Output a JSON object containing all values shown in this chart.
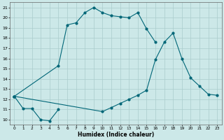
{
  "xlabel": "Humidex (Indice chaleur)",
  "bg_color": "#cce8e8",
  "line_color": "#006677",
  "grid_color": "#aacccc",
  "xlim": [
    -0.5,
    23.5
  ],
  "ylim": [
    9.5,
    21.5
  ],
  "xticks": [
    0,
    1,
    2,
    3,
    4,
    5,
    6,
    7,
    8,
    9,
    10,
    11,
    12,
    13,
    14,
    15,
    16,
    17,
    18,
    19,
    20,
    21,
    22,
    23
  ],
  "yticks": [
    10,
    11,
    12,
    13,
    14,
    15,
    16,
    17,
    18,
    19,
    20,
    21
  ],
  "lines": [
    {
      "x": [
        0,
        1,
        2,
        3,
        4,
        5
      ],
      "y": [
        12.3,
        11.1,
        11.1,
        10.0,
        9.9,
        11.0
      ]
    },
    {
      "x": [
        0,
        5,
        6,
        7,
        8,
        9,
        10,
        11,
        12,
        13,
        14,
        15,
        16
      ],
      "y": [
        12.3,
        15.3,
        19.3,
        19.5,
        20.5,
        21.0,
        20.5,
        20.2,
        20.1,
        20.0,
        20.5,
        18.9,
        17.6
      ]
    },
    {
      "x": [
        0,
        10,
        11,
        12,
        13,
        14,
        15,
        16,
        17,
        18,
        19,
        20,
        21,
        22,
        23
      ],
      "y": [
        12.3,
        10.8,
        11.2,
        11.6,
        12.0,
        12.4,
        12.9,
        15.9,
        17.6,
        18.5,
        16.0,
        14.1,
        13.3,
        12.5,
        12.4
      ]
    }
  ]
}
